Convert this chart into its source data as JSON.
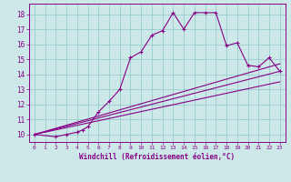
{
  "xlabel": "Windchill (Refroidissement éolien,°C)",
  "bg_color": "#cce8e8",
  "line_color": "#880088",
  "grid_color": "#99cccc",
  "xlim": [
    -0.5,
    23.5
  ],
  "ylim": [
    9.5,
    18.7
  ],
  "yticks": [
    10,
    11,
    12,
    13,
    14,
    15,
    16,
    17,
    18
  ],
  "xticks": [
    0,
    1,
    2,
    3,
    4,
    5,
    6,
    7,
    8,
    9,
    10,
    11,
    12,
    13,
    14,
    15,
    16,
    17,
    18,
    19,
    20,
    21,
    22,
    23
  ],
  "series": [
    [
      0,
      10.0
    ],
    [
      2,
      9.85
    ],
    [
      3,
      10.0
    ],
    [
      4,
      10.15
    ],
    [
      4.5,
      10.3
    ],
    [
      5,
      10.5
    ],
    [
      6,
      11.5
    ],
    [
      7,
      12.2
    ],
    [
      8,
      13.0
    ],
    [
      9,
      15.1
    ],
    [
      10,
      15.5
    ],
    [
      11,
      16.6
    ],
    [
      12,
      16.9
    ],
    [
      13,
      18.1
    ],
    [
      14,
      17.0
    ],
    [
      15,
      18.1
    ],
    [
      16,
      18.1
    ],
    [
      17,
      18.1
    ],
    [
      18,
      15.9
    ],
    [
      19,
      16.1
    ],
    [
      20,
      14.6
    ],
    [
      21,
      14.5
    ],
    [
      22,
      15.1
    ],
    [
      23,
      14.2
    ]
  ],
  "linear1": [
    [
      0,
      10.0
    ],
    [
      23,
      14.2
    ]
  ],
  "linear2": [
    [
      0,
      10.0
    ],
    [
      23,
      13.5
    ]
  ],
  "linear3": [
    [
      0,
      10.0
    ],
    [
      23,
      14.7
    ]
  ]
}
